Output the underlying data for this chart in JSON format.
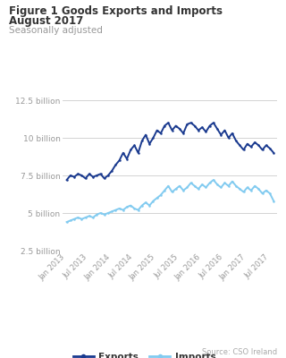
{
  "title1": "Figure 1 Goods Exports and Imports",
  "title2": "August 2017",
  "subtitle": "Seasonally adjusted",
  "source": "Source: CSO Ireland",
  "exports_color": "#1a3a8f",
  "imports_color": "#82cbf0",
  "background_color": "#ffffff",
  "grid_color": "#cccccc",
  "tick_color": "#999999",
  "ylim": [
    2.5,
    12.5
  ],
  "yticks": [
    2.5,
    5.0,
    7.5,
    10.0,
    12.5
  ],
  "ytick_labels": [
    "2.5 billion",
    "5 billion",
    "7.5 billion",
    "10 billion",
    "12.5 billion"
  ],
  "xtick_labels": [
    "Jan 2013",
    "Jul 2013",
    "Jan 2014",
    "Jul 2014",
    "Jan 2015",
    "Jul 2015",
    "Jan 2016",
    "Jul 2016",
    "Jan 2017",
    "Jul 2017"
  ],
  "exports": [
    7.2,
    7.5,
    7.4,
    7.6,
    7.5,
    7.3,
    7.6,
    7.4,
    7.5,
    7.6,
    7.3,
    7.5,
    7.8,
    8.2,
    8.5,
    9.0,
    8.6,
    9.2,
    9.5,
    9.0,
    9.8,
    10.2,
    9.6,
    10.0,
    10.5,
    10.3,
    10.8,
    11.0,
    10.5,
    10.8,
    10.6,
    10.3,
    10.9,
    11.0,
    10.8,
    10.5,
    10.7,
    10.4,
    10.8,
    11.0,
    10.6,
    10.2,
    10.5,
    10.0,
    10.3,
    9.8,
    9.5,
    9.2,
    9.6,
    9.4,
    9.7,
    9.5,
    9.2,
    9.5,
    9.3,
    9.0
  ],
  "imports": [
    4.4,
    4.5,
    4.6,
    4.7,
    4.6,
    4.7,
    4.8,
    4.7,
    4.9,
    5.0,
    4.9,
    5.0,
    5.1,
    5.2,
    5.3,
    5.2,
    5.4,
    5.5,
    5.3,
    5.2,
    5.5,
    5.7,
    5.5,
    5.8,
    6.0,
    6.2,
    6.5,
    6.8,
    6.4,
    6.6,
    6.8,
    6.5,
    6.7,
    7.0,
    6.8,
    6.6,
    6.9,
    6.7,
    7.0,
    7.2,
    6.9,
    6.7,
    7.0,
    6.8,
    7.1,
    6.8,
    6.6,
    6.4,
    6.7,
    6.5,
    6.8,
    6.6,
    6.3,
    6.5,
    6.3,
    5.8
  ],
  "n_points": 56,
  "line_width": 1.4,
  "marker_size": 1.8
}
